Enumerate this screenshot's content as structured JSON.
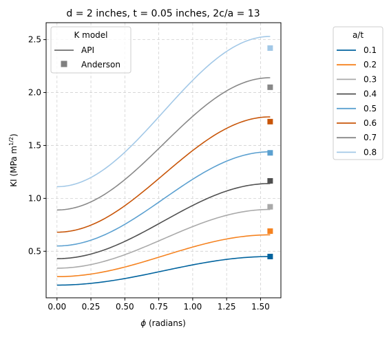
{
  "chart_data": {
    "type": "line",
    "title": "d = 2 inches, t = 0.05 inches, 2c/a = 13",
    "xlabel_symbol": "ϕ",
    "xlabel_rest": " (radians)",
    "ylabel_main": "KI (MPa m",
    "ylabel_sup": "1/2",
    "ylabel_close": ")",
    "xlim": [
      -0.08,
      1.65
    ],
    "ylim": [
      0.06,
      2.66
    ],
    "xticks": [
      0.0,
      0.25,
      0.5,
      0.75,
      1.0,
      1.25,
      1.5
    ],
    "xtick_labels": [
      "0.00",
      "0.25",
      "0.50",
      "0.75",
      "1.00",
      "1.25",
      "1.50"
    ],
    "yticks": [
      0.5,
      1.0,
      1.5,
      2.0,
      2.5
    ],
    "ytick_labels": [
      "0.5",
      "1.0",
      "1.5",
      "2.0",
      "2.5"
    ],
    "grid": true,
    "model_legend": {
      "title": "K model",
      "placement": "top-left",
      "entries": [
        {
          "label": "API",
          "marker": "line",
          "color": "#6f6f6f"
        },
        {
          "label": "Anderson",
          "marker": "square",
          "color": "#808080"
        }
      ]
    },
    "series_legend": {
      "title": "a/t",
      "placement": "outside-right"
    },
    "series": [
      {
        "name": "0.1",
        "color": "#00639e",
        "y_start": 0.18,
        "y_end": 0.45,
        "anderson": 0.45
      },
      {
        "name": "0.2",
        "color": "#f5821f",
        "y_start": 0.26,
        "y_end": 0.655,
        "anderson": 0.69
      },
      {
        "name": "0.3",
        "color": "#a9a9a9",
        "y_start": 0.34,
        "y_end": 0.895,
        "anderson": 0.92
      },
      {
        "name": "0.4",
        "color": "#505050",
        "y_start": 0.43,
        "y_end": 1.14,
        "anderson": 1.165
      },
      {
        "name": "0.5",
        "color": "#5ba0d0",
        "y_start": 0.55,
        "y_end": 1.44,
        "anderson": 1.43
      },
      {
        "name": "0.6",
        "color": "#c85508",
        "y_start": 0.68,
        "y_end": 1.77,
        "anderson": 1.725
      },
      {
        "name": "0.7",
        "color": "#888888",
        "y_start": 0.89,
        "y_end": 2.14,
        "anderson": 2.05
      },
      {
        "name": "0.8",
        "color": "#a2c8e7",
        "y_start": 1.11,
        "y_end": 2.53,
        "anderson": 2.42
      }
    ],
    "phi_end": 1.5708
  }
}
